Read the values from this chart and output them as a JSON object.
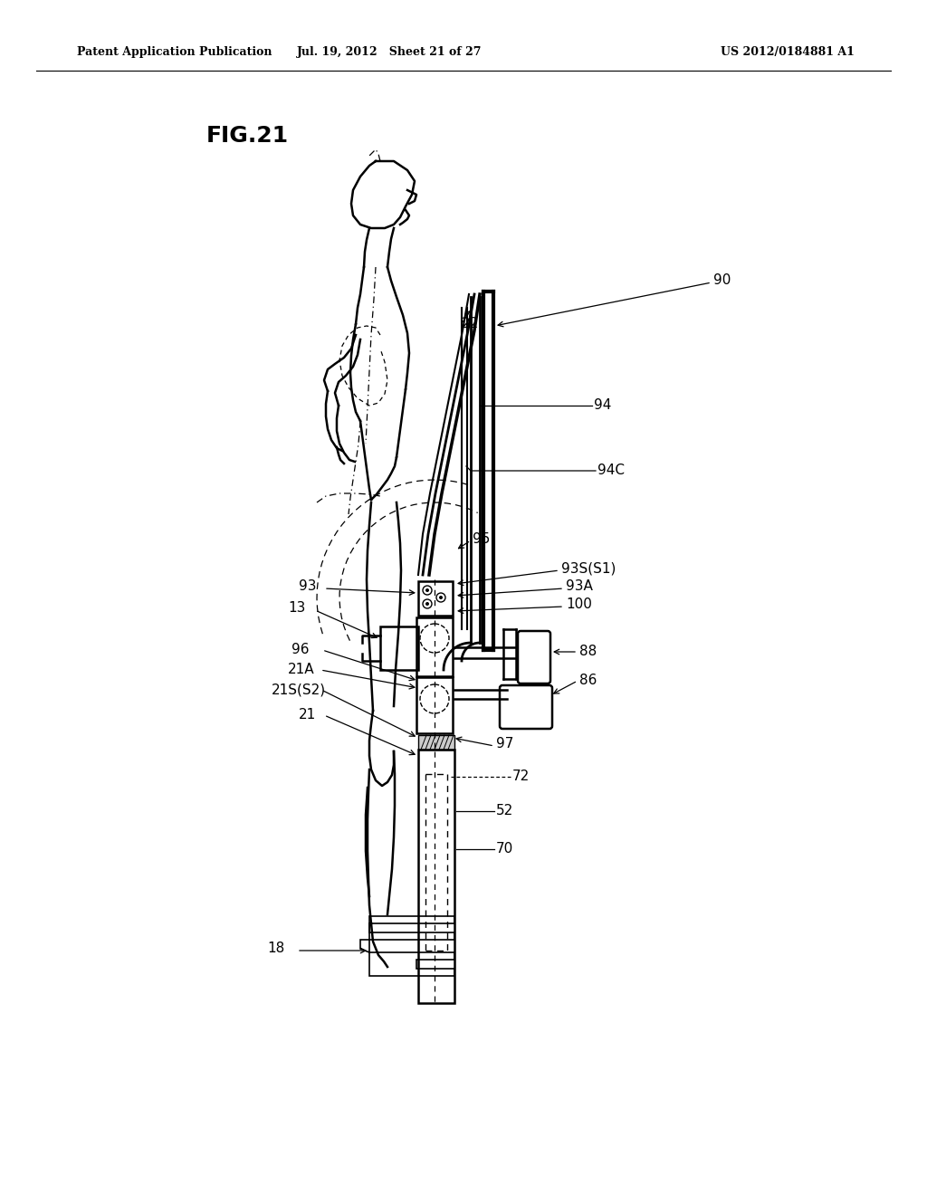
{
  "title": "FIG.21",
  "header_left": "Patent Application Publication",
  "header_center": "Jul. 19, 2012   Sheet 21 of 27",
  "header_right": "US 2012/0184881 A1",
  "bg": "#ffffff",
  "lc": "#000000"
}
